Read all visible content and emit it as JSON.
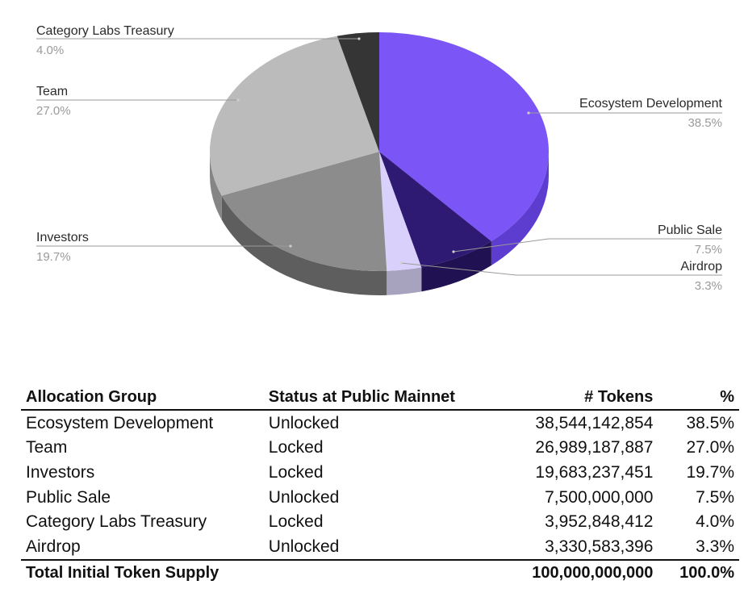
{
  "chart_data": {
    "type": "pie",
    "slices": [
      {
        "label": "Ecosystem Development",
        "value": 38.5,
        "pct_label": "38.5%",
        "color": "#7b55f5",
        "side": "#5d3dcf"
      },
      {
        "label": "Public Sale",
        "value": 7.5,
        "pct_label": "7.5%",
        "color": "#2e1a73",
        "side": "#1f1152"
      },
      {
        "label": "Airdrop",
        "value": 3.3,
        "pct_label": "3.3%",
        "color": "#d9d1fb",
        "side": "#a7a2bd"
      },
      {
        "label": "Investors",
        "value": 19.7,
        "pct_label": "19.7%",
        "color": "#8c8c8c",
        "side": "#5e5e5e"
      },
      {
        "label": "Team",
        "value": 27.0,
        "pct_label": "27.0%",
        "color": "#bbbbbb",
        "side": "#858585"
      },
      {
        "label": "Category Labs Treasury",
        "value": 4.0,
        "pct_label": "4.0%",
        "color": "#353535",
        "side": "#1e1e1e"
      }
    ],
    "legend": "callout labels"
  },
  "table": {
    "headers": [
      "Allocation Group",
      "Status at Public Mainnet",
      "# Tokens",
      "%"
    ],
    "rows": [
      {
        "group": "Ecosystem Development",
        "status": "Unlocked",
        "tokens": "38,544,142,854",
        "pct": "38.5%"
      },
      {
        "group": "Team",
        "status": "Locked",
        "tokens": "26,989,187,887",
        "pct": "27.0%"
      },
      {
        "group": "Investors",
        "status": "Locked",
        "tokens": "19,683,237,451",
        "pct": "19.7%"
      },
      {
        "group": "Public Sale",
        "status": "Unlocked",
        "tokens": "7,500,000,000",
        "pct": "7.5%"
      },
      {
        "group": "Category Labs Treasury",
        "status": "Locked",
        "tokens": "3,952,848,412",
        "pct": "4.0%"
      },
      {
        "group": "Airdrop",
        "status": "Unlocked",
        "tokens": "3,330,583,396",
        "pct": "3.3%"
      }
    ],
    "total": {
      "label": "Total Initial Token Supply",
      "tokens": "100,000,000,000",
      "pct": "100.0%"
    }
  }
}
